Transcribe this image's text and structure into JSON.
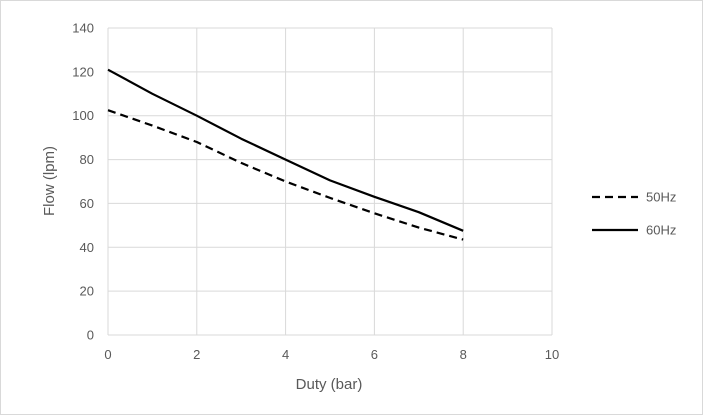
{
  "chart_data": {
    "type": "line",
    "title": "",
    "xlabel": "Duty (bar)",
    "ylabel": "Flow (lpm)",
    "xlim": [
      0,
      10
    ],
    "ylim": [
      0,
      140
    ],
    "x_ticks": [
      0,
      2,
      4,
      6,
      8,
      10
    ],
    "y_ticks": [
      0,
      20,
      40,
      60,
      80,
      100,
      120,
      140
    ],
    "grid": true,
    "legend_position": "right",
    "series": [
      {
        "name": "50Hz",
        "line_style": "dashed",
        "color": "#000000",
        "x": [
          0,
          1,
          2,
          3,
          4,
          5,
          6,
          7,
          8
        ],
        "y": [
          102.5,
          95.5,
          88,
          78.5,
          70,
          62.5,
          55.5,
          49,
          43.5
        ]
      },
      {
        "name": "60Hz",
        "line_style": "solid",
        "color": "#000000",
        "x": [
          0,
          1,
          2,
          3,
          4,
          5,
          6,
          7,
          8
        ],
        "y": [
          121,
          110,
          100,
          89.5,
          80,
          70.5,
          63,
          56,
          47.5
        ]
      }
    ]
  }
}
